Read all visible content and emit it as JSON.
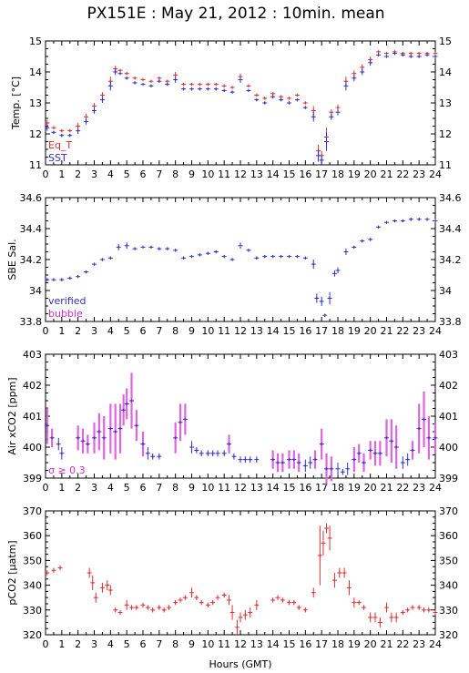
{
  "title": "PX151E : May 21, 2012 : 10min. mean",
  "chart_data": [
    {
      "type": "scatter",
      "ylabel": "Temp. [°C]",
      "ylim": [
        11,
        15
      ],
      "yticks": [
        11,
        12,
        13,
        14,
        15
      ],
      "xlim": [
        0,
        24
      ],
      "grid": false,
      "legend_position": "bottom-left",
      "legend": [
        {
          "name": "Eq_T",
          "color": "#e03030"
        },
        {
          "name": "SST",
          "color": "#3030cc"
        }
      ],
      "series": [
        {
          "name": "Eq_T",
          "color": "#e03030",
          "x": [
            0.1,
            0.5,
            1.0,
            1.5,
            2.0,
            2.5,
            3.0,
            3.5,
            4.0,
            4.3,
            4.6,
            5.0,
            5.5,
            6.0,
            6.5,
            7.0,
            7.5,
            8.0,
            8.5,
            9.0,
            9.5,
            10.0,
            10.5,
            11.0,
            11.5,
            12.0,
            12.5,
            13.0,
            13.5,
            14.0,
            14.5,
            15.0,
            15.5,
            16.0,
            16.5,
            16.8,
            17.0,
            17.3,
            17.6,
            18.0,
            18.5,
            19.0,
            19.5,
            20.0,
            20.5,
            21.0,
            21.5,
            22.0,
            22.5,
            23.0,
            23.5,
            24.0
          ],
          "y": [
            12.35,
            12.2,
            12.1,
            12.1,
            12.25,
            12.55,
            12.9,
            13.25,
            13.7,
            14.1,
            14.05,
            13.95,
            13.8,
            13.75,
            13.7,
            13.8,
            13.7,
            13.9,
            13.6,
            13.6,
            13.6,
            13.6,
            13.6,
            13.55,
            13.5,
            13.85,
            13.55,
            13.25,
            13.15,
            13.3,
            13.2,
            13.15,
            13.25,
            13.0,
            12.75,
            11.45,
            11.3,
            11.9,
            12.7,
            12.85,
            13.7,
            13.95,
            14.15,
            14.4,
            14.65,
            14.6,
            14.65,
            14.6,
            14.6,
            14.6,
            14.6,
            14.6
          ],
          "err": [
            0.1,
            0.05,
            0.05,
            0.05,
            0.1,
            0.1,
            0.1,
            0.1,
            0.15,
            0.1,
            0.05,
            0.05,
            0.05,
            0.05,
            0.05,
            0.05,
            0.05,
            0.1,
            0.05,
            0.05,
            0.05,
            0.05,
            0.05,
            0.05,
            0.05,
            0.1,
            0.05,
            0.05,
            0.05,
            0.05,
            0.05,
            0.05,
            0.05,
            0.05,
            0.15,
            0.2,
            0.15,
            0.3,
            0.1,
            0.1,
            0.15,
            0.1,
            0.1,
            0.1,
            0.05,
            0.05,
            0.05,
            0.05,
            0.05,
            0.05,
            0.05,
            0.05
          ]
        },
        {
          "name": "SST",
          "color": "#3030cc",
          "x": [
            0.1,
            0.5,
            1.0,
            1.5,
            2.0,
            2.5,
            3.0,
            3.5,
            4.0,
            4.3,
            4.6,
            5.0,
            5.5,
            6.0,
            6.5,
            7.0,
            7.5,
            8.0,
            8.5,
            9.0,
            9.5,
            10.0,
            10.5,
            11.0,
            11.5,
            12.0,
            12.5,
            13.0,
            13.5,
            14.0,
            14.5,
            15.0,
            15.5,
            16.0,
            16.5,
            16.8,
            17.0,
            17.3,
            17.6,
            18.0,
            18.5,
            19.0,
            19.5,
            20.0,
            20.5,
            21.0,
            21.5,
            22.0,
            22.5,
            23.0,
            23.5,
            24.0
          ],
          "y": [
            12.2,
            12.05,
            11.95,
            11.95,
            12.1,
            12.4,
            12.75,
            13.1,
            13.55,
            14.0,
            13.95,
            13.8,
            13.65,
            13.6,
            13.55,
            13.7,
            13.6,
            13.75,
            13.45,
            13.45,
            13.45,
            13.45,
            13.45,
            13.4,
            13.35,
            13.75,
            13.4,
            13.1,
            13.0,
            13.2,
            13.1,
            13.0,
            13.1,
            12.85,
            12.55,
            11.3,
            11.15,
            11.75,
            12.55,
            12.7,
            13.55,
            13.8,
            14.0,
            14.3,
            14.55,
            14.5,
            14.6,
            14.55,
            14.5,
            14.5,
            14.55,
            14.5
          ],
          "err": [
            0.1,
            0.05,
            0.05,
            0.05,
            0.1,
            0.1,
            0.1,
            0.1,
            0.15,
            0.1,
            0.05,
            0.05,
            0.05,
            0.05,
            0.05,
            0.05,
            0.05,
            0.1,
            0.05,
            0.05,
            0.05,
            0.05,
            0.05,
            0.05,
            0.05,
            0.1,
            0.05,
            0.05,
            0.05,
            0.05,
            0.05,
            0.05,
            0.05,
            0.05,
            0.15,
            0.2,
            0.15,
            0.3,
            0.1,
            0.1,
            0.15,
            0.1,
            0.1,
            0.1,
            0.05,
            0.05,
            0.05,
            0.05,
            0.05,
            0.05,
            0.05,
            0.05
          ]
        }
      ]
    },
    {
      "type": "scatter",
      "ylabel": "SBE Sal.",
      "ylim": [
        33.8,
        34.6
      ],
      "yticks": [
        33.8,
        34,
        34.2,
        34.4,
        34.6
      ],
      "xlim": [
        0,
        24
      ],
      "grid": false,
      "legend_position": "bottom-left",
      "legend": [
        {
          "name": "verified",
          "color": "#3030cc"
        },
        {
          "name": "bubble",
          "color": "#cc30cc"
        }
      ],
      "series": [
        {
          "name": "verified",
          "color": "#3030cc",
          "x": [
            0.1,
            0.5,
            1.0,
            1.5,
            2.0,
            2.5,
            3.0,
            3.5,
            4.0,
            4.5,
            5.0,
            5.5,
            6.0,
            6.5,
            7.0,
            7.5,
            8.0,
            8.5,
            9.0,
            9.5,
            10.0,
            10.5,
            11.0,
            11.5,
            12.0,
            12.5,
            13.0,
            13.5,
            14.0,
            14.5,
            15.0,
            15.5,
            16.0,
            16.5,
            16.7,
            17.0,
            17.2,
            17.5,
            17.8,
            18.0,
            18.5,
            19.0,
            19.5,
            20.0,
            20.5,
            21.0,
            21.5,
            22.0,
            22.5,
            23.0,
            23.5,
            24.0
          ],
          "y": [
            34.07,
            34.07,
            34.07,
            34.08,
            34.09,
            34.12,
            34.17,
            34.2,
            34.21,
            34.28,
            34.29,
            34.27,
            34.28,
            34.28,
            34.27,
            34.27,
            34.26,
            34.21,
            34.22,
            34.23,
            34.24,
            34.25,
            34.22,
            34.2,
            34.29,
            34.26,
            34.21,
            34.22,
            34.22,
            34.22,
            34.22,
            34.22,
            34.21,
            34.17,
            33.95,
            33.93,
            33.84,
            33.95,
            34.11,
            34.13,
            34.25,
            34.28,
            34.32,
            34.33,
            34.41,
            34.44,
            34.45,
            34.45,
            34.46,
            34.46,
            34.46,
            34.45
          ],
          "err": [
            0.01,
            0.01,
            0.01,
            0.01,
            0.01,
            0.01,
            0.01,
            0.01,
            0.01,
            0.02,
            0.02,
            0.01,
            0.01,
            0.01,
            0.01,
            0.01,
            0.01,
            0.01,
            0.01,
            0.01,
            0.01,
            0.01,
            0.01,
            0.01,
            0.02,
            0.01,
            0.01,
            0.01,
            0.01,
            0.01,
            0.01,
            0.01,
            0.01,
            0.03,
            0.03,
            0.03,
            0.01,
            0.04,
            0.02,
            0.02,
            0.02,
            0.01,
            0.01,
            0.01,
            0.01,
            0.01,
            0.01,
            0.01,
            0.01,
            0.01,
            0.01,
            0.01
          ]
        }
      ]
    },
    {
      "type": "scatter",
      "ylabel": "Air xCO2 [ppm]",
      "ylim": [
        399,
        403
      ],
      "yticks": [
        399,
        400,
        401,
        402,
        403
      ],
      "xlim": [
        0,
        24
      ],
      "grid": false,
      "annotation": "σ ≥ 0.3",
      "series": [
        {
          "name": "",
          "color": "#3030cc",
          "x": [
            0.1,
            0.4,
            0.8,
            1.0,
            2.0,
            2.3,
            2.6,
            3.0,
            3.3,
            3.6,
            4.0,
            4.3,
            4.6,
            4.8,
            5.0,
            5.3,
            5.6,
            6.0,
            6.3,
            6.6,
            7.0,
            8.0,
            8.3,
            8.6,
            9.0,
            9.3,
            9.6,
            10.0,
            10.3,
            10.6,
            11.0,
            11.3,
            11.6,
            12.0,
            12.3,
            12.6,
            13.0,
            14.0,
            14.3,
            14.6,
            15.0,
            15.3,
            15.6,
            16.0,
            16.3,
            16.6,
            17.0,
            17.3,
            17.6,
            18.0,
            18.3,
            18.6,
            19.0,
            19.3,
            19.6,
            20.0,
            20.3,
            20.6,
            21.0,
            21.3,
            21.6,
            22.0,
            22.3,
            22.6,
            23.0,
            23.3,
            23.6,
            24.0
          ],
          "y": [
            400.7,
            400.3,
            400.1,
            399.8,
            400.3,
            400.2,
            400.1,
            400.3,
            400.5,
            400.3,
            400.6,
            400.5,
            400.6,
            401.2,
            401.4,
            401.5,
            400.7,
            400.1,
            399.8,
            399.7,
            399.7,
            400.3,
            400.8,
            400.9,
            400.0,
            399.9,
            399.8,
            399.8,
            399.8,
            399.8,
            399.8,
            400.1,
            399.7,
            399.6,
            399.6,
            399.6,
            399.6,
            399.6,
            399.5,
            399.5,
            399.6,
            399.6,
            399.5,
            399.4,
            399.5,
            399.6,
            400.1,
            399.3,
            399.3,
            399.3,
            399.2,
            399.3,
            399.6,
            399.8,
            399.5,
            399.9,
            399.8,
            399.8,
            400.3,
            400.2,
            400.0,
            399.5,
            399.6,
            399.9,
            400.6,
            400.9,
            400.3,
            400.3
          ],
          "err": [
            0.6,
            0.3,
            0.2,
            0.2,
            0.4,
            0.4,
            0.3,
            0.5,
            0.6,
            0.7,
            0.8,
            0.9,
            0.8,
            0.5,
            0.5,
            0.9,
            0.5,
            0.4,
            0.2,
            0.1,
            0.1,
            0.5,
            0.6,
            0.5,
            0.2,
            0.1,
            0.1,
            0.1,
            0.1,
            0.1,
            0.1,
            0.3,
            0.1,
            0.1,
            0.1,
            0.1,
            0.1,
            0.3,
            0.3,
            0.3,
            0.3,
            0.3,
            0.3,
            0.2,
            0.2,
            0.3,
            0.5,
            0.5,
            0.4,
            0.2,
            0.1,
            0.2,
            0.4,
            0.3,
            0.3,
            0.3,
            0.4,
            0.4,
            0.6,
            0.7,
            0.7,
            0.2,
            0.2,
            0.3,
            0.8,
            0.9,
            0.7,
            0.5
          ]
        }
      ]
    },
    {
      "type": "scatter",
      "ylabel": "pCO2 [μatm]",
      "ylim": [
        320,
        370
      ],
      "yticks": [
        320,
        330,
        340,
        350,
        360,
        370
      ],
      "xlim": [
        0,
        24
      ],
      "xlabel": "Hours (GMT)",
      "xticks": [
        0,
        1,
        2,
        3,
        4,
        5,
        6,
        7,
        8,
        9,
        10,
        11,
        12,
        13,
        14,
        15,
        16,
        17,
        18,
        19,
        20,
        21,
        22,
        23,
        24
      ],
      "grid": false,
      "series": [
        {
          "name": "",
          "color": "#e03030",
          "x": [
            0.1,
            0.5,
            0.9,
            2.7,
            2.9,
            3.1,
            3.5,
            3.8,
            4.0,
            4.3,
            4.6,
            5.0,
            5.3,
            5.6,
            6.0,
            6.3,
            6.6,
            7.0,
            7.3,
            7.6,
            8.0,
            8.3,
            8.6,
            9.0,
            9.3,
            9.6,
            10.0,
            10.3,
            10.6,
            11.0,
            11.3,
            11.5,
            11.8,
            12.0,
            12.3,
            12.6,
            13.0,
            14.0,
            14.3,
            14.6,
            15.0,
            15.3,
            15.6,
            16.0,
            16.5,
            16.9,
            17.1,
            17.3,
            17.5,
            17.8,
            18.1,
            18.4,
            18.7,
            19.0,
            19.3,
            19.6,
            20.0,
            20.3,
            20.6,
            21.0,
            21.3,
            21.6,
            22.0,
            22.3,
            22.6,
            23.0,
            23.3,
            23.6,
            24.0
          ],
          "y": [
            345,
            346,
            347,
            345,
            341,
            335,
            339,
            340,
            338,
            330,
            329,
            332,
            331,
            331,
            332,
            331,
            330,
            331,
            330,
            331,
            333,
            334,
            335,
            337,
            335,
            333,
            332,
            333,
            335,
            336,
            334,
            329,
            323,
            327,
            328,
            329,
            332,
            334,
            335,
            334,
            333,
            333,
            331,
            330,
            337,
            352,
            357,
            363,
            359,
            342,
            345,
            345,
            339,
            333,
            333,
            331,
            327,
            327,
            325,
            331,
            327,
            327,
            329,
            330,
            331,
            331,
            330,
            330,
            329
          ],
          "err": [
            1,
            1,
            1,
            2,
            3,
            2,
            2,
            2,
            2,
            1,
            1,
            2,
            1,
            1,
            1,
            1,
            1,
            1,
            1,
            1,
            1,
            1,
            1,
            2,
            1,
            1,
            1,
            1,
            1,
            1,
            2,
            3,
            3,
            2,
            2,
            2,
            2,
            1,
            1,
            1,
            1,
            1,
            1,
            1,
            2,
            12,
            5,
            2,
            5,
            3,
            2,
            2,
            3,
            2,
            1,
            1,
            2,
            2,
            2,
            2,
            2,
            2,
            1,
            1,
            1,
            1,
            1,
            1,
            1
          ]
        }
      ]
    }
  ]
}
